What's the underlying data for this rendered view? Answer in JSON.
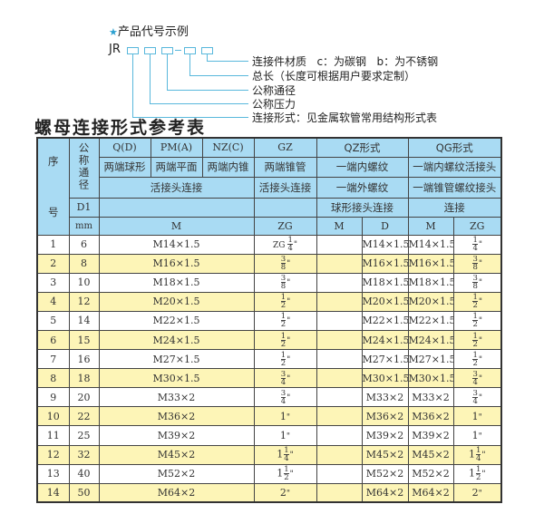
{
  "legend": {
    "star_icon": "★",
    "title": "产品代号示例",
    "code_prefix": "JR",
    "labels": [
      "连接件材质   c：为碳钢   b：为不锈钢",
      "总长（长度可根据用户要求定制）",
      "公称通径",
      "公称压力",
      "连接形式：见金属软管常用结构形式表"
    ]
  },
  "table_title": "螺母连接形式参考表",
  "header": {
    "seq_top": "序",
    "seq_bottom": "号",
    "nominal_dia": "公称通径",
    "d1": "D1",
    "mm": "mm",
    "row1": [
      "Q(D)",
      "PM(A)",
      "NZ(C)",
      "GZ",
      "QZ形式",
      "QG形式"
    ],
    "row2": [
      "两端球形",
      "两端平面",
      "两端内锥",
      "两端锥管",
      "一端内螺纹",
      "一端内螺纹活接头"
    ],
    "row3": [
      "活接头连接",
      "活接头连接",
      "一端外螺纹",
      "一端锥管螺纹接头"
    ],
    "row4": [
      "",
      "",
      "球形接头连接",
      "连接"
    ],
    "row5": [
      "M",
      "ZG",
      "M",
      "D",
      "M",
      "ZG"
    ]
  },
  "colors": {
    "header_bg": "#a9dbf3",
    "alt_row_bg": "#fdf5b7",
    "accent": "#59b8dc"
  },
  "rows": [
    {
      "no": "1",
      "d1": "6",
      "m": "M14×1.5",
      "zg": {
        "prefix": "ZG",
        "whole": "",
        "num": "1",
        "den": "4"
      },
      "qz_m": "",
      "qz_d": "M14×1.5",
      "qg_m": "M14×1.5",
      "qg_zg": {
        "whole": "",
        "num": "1",
        "den": "4"
      }
    },
    {
      "no": "2",
      "d1": "8",
      "m": "M16×1.5",
      "zg": {
        "whole": "",
        "num": "3",
        "den": "8"
      },
      "qz_m": "",
      "qz_d": "M16×1.5",
      "qg_m": "M16×1.5",
      "qg_zg": {
        "whole": "",
        "num": "3",
        "den": "8"
      }
    },
    {
      "no": "3",
      "d1": "10",
      "m": "M18×1.5",
      "zg": {
        "whole": "",
        "num": "3",
        "den": "8"
      },
      "qz_m": "",
      "qz_d": "M18×1.5",
      "qg_m": "M18×1.5",
      "qg_zg": {
        "whole": "",
        "num": "3",
        "den": "8"
      }
    },
    {
      "no": "4",
      "d1": "12",
      "m": "M20×1.5",
      "zg": {
        "whole": "",
        "num": "1",
        "den": "2"
      },
      "qz_m": "",
      "qz_d": "M20×1.5",
      "qg_m": "M20×1.5",
      "qg_zg": {
        "whole": "",
        "num": "1",
        "den": "2"
      }
    },
    {
      "no": "5",
      "d1": "14",
      "m": "M22×1.5",
      "zg": {
        "whole": "",
        "num": "1",
        "den": "2"
      },
      "qz_m": "",
      "qz_d": "M22×1.5",
      "qg_m": "M22×1.5",
      "qg_zg": {
        "whole": "",
        "num": "1",
        "den": "2"
      }
    },
    {
      "no": "6",
      "d1": "15",
      "m": "M24×1.5",
      "zg": {
        "whole": "",
        "num": "1",
        "den": "2"
      },
      "qz_m": "",
      "qz_d": "M24×1.5",
      "qg_m": "M24×1.5",
      "qg_zg": {
        "whole": "",
        "num": "1",
        "den": "2"
      }
    },
    {
      "no": "7",
      "d1": "16",
      "m": "M27×1.5",
      "zg": {
        "whole": "",
        "num": "1",
        "den": "2"
      },
      "qz_m": "",
      "qz_d": "M27×1.5",
      "qg_m": "M27×1.5",
      "qg_zg": {
        "whole": "",
        "num": "1",
        "den": "2"
      }
    },
    {
      "no": "8",
      "d1": "18",
      "m": "M30×1.5",
      "zg": {
        "whole": "",
        "num": "3",
        "den": "4"
      },
      "qz_m": "",
      "qz_d": "M30×1.5",
      "qg_m": "M30×1.5",
      "qg_zg": {
        "whole": "",
        "num": "3",
        "den": "4"
      }
    },
    {
      "no": "9",
      "d1": "20",
      "m": "M33×2",
      "zg": {
        "whole": "",
        "num": "3",
        "den": "4"
      },
      "qz_m": "",
      "qz_d": "M33×2",
      "qg_m": "M33×2",
      "qg_zg": {
        "whole": "",
        "num": "3",
        "den": "4"
      }
    },
    {
      "no": "10",
      "d1": "22",
      "m": "M36×2",
      "zg": {
        "whole": "1",
        "num": "",
        "den": ""
      },
      "qz_m": "",
      "qz_d": "M36×2",
      "qg_m": "M36×2",
      "qg_zg": {
        "whole": "1",
        "num": "",
        "den": ""
      }
    },
    {
      "no": "11",
      "d1": "25",
      "m": "M39×2",
      "zg": {
        "whole": "1",
        "num": "",
        "den": ""
      },
      "qz_m": "",
      "qz_d": "M39×2",
      "qg_m": "M39×2",
      "qg_zg": {
        "whole": "1",
        "num": "",
        "den": ""
      }
    },
    {
      "no": "12",
      "d1": "32",
      "m": "M45×2",
      "zg": {
        "whole": "1",
        "num": "1",
        "den": "4"
      },
      "qz_m": "",
      "qz_d": "M45×2",
      "qg_m": "M45×2",
      "qg_zg": {
        "whole": "1",
        "num": "1",
        "den": "4"
      }
    },
    {
      "no": "13",
      "d1": "40",
      "m": "M52×2",
      "zg": {
        "whole": "1",
        "num": "1",
        "den": "2"
      },
      "qz_m": "",
      "qz_d": "M52×2",
      "qg_m": "M52×2",
      "qg_zg": {
        "whole": "1",
        "num": "1",
        "den": "2"
      }
    },
    {
      "no": "14",
      "d1": "50",
      "m": "M64×2",
      "zg": {
        "whole": "2",
        "num": "",
        "den": ""
      },
      "qz_m": "",
      "qz_d": "M64×2",
      "qg_m": "M64×2",
      "qg_zg": {
        "whole": "2",
        "num": "",
        "den": ""
      }
    }
  ],
  "inch_mark": "\""
}
